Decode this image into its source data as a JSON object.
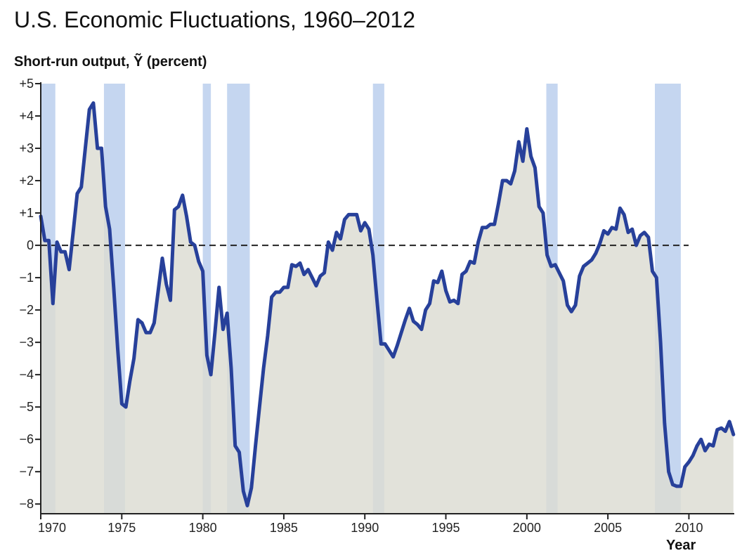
{
  "chart_data": {
    "type": "line",
    "title": "U.S. Economic Fluctuations, 1960–2012",
    "ylabel": "Short-run output, Ỹ (percent)",
    "xlabel": "Year",
    "xlim": [
      1970,
      2012.8
    ],
    "ylim": [
      -8.3,
      5
    ],
    "x_ticks": [
      1970,
      1975,
      1980,
      1985,
      1990,
      1995,
      2000,
      2005,
      2010
    ],
    "x_tick_labels": [
      "1970",
      "1975",
      "1980",
      "1985",
      "1990",
      "1995",
      "2000",
      "2005",
      "2010"
    ],
    "y_ticks": [
      5,
      4,
      3,
      2,
      1,
      0,
      -1,
      -2,
      -3,
      -4,
      -5,
      -6,
      -7,
      -8
    ],
    "y_tick_labels": [
      "+5",
      "+4",
      "+3",
      "+2",
      "+1",
      "0",
      "−1",
      "−2",
      "−3",
      "−4",
      "−5",
      "−6",
      "−7",
      "−8"
    ],
    "recessions": [
      [
        1970.0,
        1970.9
      ],
      [
        1973.9,
        1975.2
      ],
      [
        1980.0,
        1980.5
      ],
      [
        1981.5,
        1982.9
      ],
      [
        1990.5,
        1991.2
      ],
      [
        2001.2,
        2001.9
      ],
      [
        2007.9,
        2009.5
      ]
    ],
    "zero_line": "dashed",
    "colors": {
      "line": "#27409a",
      "fill": "#dcdcd2",
      "recession": "#c5d6f0",
      "zero_line": "#222222"
    },
    "series": [
      {
        "values": [
          [
            1970.0,
            0.9
          ],
          [
            1970.25,
            0.15
          ],
          [
            1970.5,
            0.15
          ],
          [
            1970.75,
            -1.8
          ],
          [
            1971.0,
            0.1
          ],
          [
            1971.25,
            -0.2
          ],
          [
            1971.5,
            -0.2
          ],
          [
            1971.75,
            -0.75
          ],
          [
            1972.0,
            0.4
          ],
          [
            1972.25,
            1.6
          ],
          [
            1972.5,
            1.8
          ],
          [
            1972.75,
            3.0
          ],
          [
            1973.0,
            4.2
          ],
          [
            1973.25,
            4.4
          ],
          [
            1973.5,
            3.0
          ],
          [
            1973.75,
            3.0
          ],
          [
            1974.0,
            1.2
          ],
          [
            1974.25,
            0.5
          ],
          [
            1974.5,
            -1.3
          ],
          [
            1974.75,
            -3.2
          ],
          [
            1975.0,
            -4.9
          ],
          [
            1975.25,
            -5.0
          ],
          [
            1975.5,
            -4.2
          ],
          [
            1975.75,
            -3.5
          ],
          [
            1976.0,
            -2.3
          ],
          [
            1976.25,
            -2.4
          ],
          [
            1976.5,
            -2.7
          ],
          [
            1976.75,
            -2.7
          ],
          [
            1977.0,
            -2.4
          ],
          [
            1977.25,
            -1.4
          ],
          [
            1977.5,
            -0.4
          ],
          [
            1977.75,
            -1.2
          ],
          [
            1978.0,
            -1.7
          ],
          [
            1978.25,
            1.1
          ],
          [
            1978.5,
            1.2
          ],
          [
            1978.75,
            1.55
          ],
          [
            1979.0,
            0.9
          ],
          [
            1979.25,
            0.1
          ],
          [
            1979.5,
            0.0
          ],
          [
            1979.75,
            -0.5
          ],
          [
            1980.0,
            -0.8
          ],
          [
            1980.25,
            -3.4
          ],
          [
            1980.5,
            -4.0
          ],
          [
            1980.75,
            -2.7
          ],
          [
            1981.0,
            -1.3
          ],
          [
            1981.25,
            -2.6
          ],
          [
            1981.5,
            -2.1
          ],
          [
            1981.75,
            -3.8
          ],
          [
            1982.0,
            -6.2
          ],
          [
            1982.25,
            -6.4
          ],
          [
            1982.5,
            -7.6
          ],
          [
            1982.75,
            -8.05
          ],
          [
            1983.0,
            -7.5
          ],
          [
            1983.25,
            -6.2
          ],
          [
            1983.5,
            -5.0
          ],
          [
            1983.75,
            -3.8
          ],
          [
            1984.0,
            -2.8
          ],
          [
            1984.25,
            -1.6
          ],
          [
            1984.5,
            -1.45
          ],
          [
            1984.75,
            -1.45
          ],
          [
            1985.0,
            -1.3
          ],
          [
            1985.25,
            -1.3
          ],
          [
            1985.5,
            -0.6
          ],
          [
            1985.75,
            -0.65
          ],
          [
            1986.0,
            -0.55
          ],
          [
            1986.25,
            -0.9
          ],
          [
            1986.5,
            -0.75
          ],
          [
            1986.75,
            -1.0
          ],
          [
            1987.0,
            -1.25
          ],
          [
            1987.25,
            -0.95
          ],
          [
            1987.5,
            -0.85
          ],
          [
            1987.75,
            0.1
          ],
          [
            1988.0,
            -0.15
          ],
          [
            1988.25,
            0.4
          ],
          [
            1988.5,
            0.2
          ],
          [
            1988.75,
            0.8
          ],
          [
            1989.0,
            0.95
          ],
          [
            1989.25,
            0.95
          ],
          [
            1989.5,
            0.95
          ],
          [
            1989.75,
            0.45
          ],
          [
            1990.0,
            0.7
          ],
          [
            1990.25,
            0.5
          ],
          [
            1990.5,
            -0.3
          ],
          [
            1990.75,
            -1.7
          ],
          [
            1991.0,
            -3.05
          ],
          [
            1991.25,
            -3.05
          ],
          [
            1991.5,
            -3.25
          ],
          [
            1991.75,
            -3.45
          ],
          [
            1992.0,
            -3.1
          ],
          [
            1992.25,
            -2.7
          ],
          [
            1992.5,
            -2.3
          ],
          [
            1992.75,
            -1.95
          ],
          [
            1993.0,
            -2.35
          ],
          [
            1993.25,
            -2.45
          ],
          [
            1993.5,
            -2.6
          ],
          [
            1993.75,
            -2.0
          ],
          [
            1994.0,
            -1.8
          ],
          [
            1994.25,
            -1.1
          ],
          [
            1994.5,
            -1.15
          ],
          [
            1994.75,
            -0.8
          ],
          [
            1995.0,
            -1.4
          ],
          [
            1995.25,
            -1.75
          ],
          [
            1995.5,
            -1.7
          ],
          [
            1995.75,
            -1.8
          ],
          [
            1996.0,
            -0.9
          ],
          [
            1996.25,
            -0.8
          ],
          [
            1996.5,
            -0.5
          ],
          [
            1996.75,
            -0.55
          ],
          [
            1997.0,
            0.1
          ],
          [
            1997.25,
            0.55
          ],
          [
            1997.5,
            0.55
          ],
          [
            1997.75,
            0.65
          ],
          [
            1998.0,
            0.65
          ],
          [
            1998.25,
            1.3
          ],
          [
            1998.5,
            2.0
          ],
          [
            1998.75,
            2.0
          ],
          [
            1999.0,
            1.9
          ],
          [
            1999.25,
            2.3
          ],
          [
            1999.5,
            3.2
          ],
          [
            1999.75,
            2.6
          ],
          [
            2000.0,
            3.6
          ],
          [
            2000.25,
            2.75
          ],
          [
            2000.5,
            2.4
          ],
          [
            2000.75,
            1.2
          ],
          [
            2001.0,
            1.0
          ],
          [
            2001.25,
            -0.3
          ],
          [
            2001.5,
            -0.65
          ],
          [
            2001.75,
            -0.6
          ],
          [
            2002.0,
            -0.85
          ],
          [
            2002.25,
            -1.1
          ],
          [
            2002.5,
            -1.85
          ],
          [
            2002.75,
            -2.05
          ],
          [
            2003.0,
            -1.85
          ],
          [
            2003.25,
            -0.95
          ],
          [
            2003.5,
            -0.65
          ],
          [
            2003.75,
            -0.55
          ],
          [
            2004.0,
            -0.45
          ],
          [
            2004.25,
            -0.25
          ],
          [
            2004.5,
            0.05
          ],
          [
            2004.75,
            0.45
          ],
          [
            2005.0,
            0.35
          ],
          [
            2005.25,
            0.55
          ],
          [
            2005.5,
            0.5
          ],
          [
            2005.75,
            1.15
          ],
          [
            2006.0,
            0.95
          ],
          [
            2006.25,
            0.4
          ],
          [
            2006.5,
            0.5
          ],
          [
            2006.75,
            0.0
          ],
          [
            2007.0,
            0.3
          ],
          [
            2007.25,
            0.4
          ],
          [
            2007.5,
            0.25
          ],
          [
            2007.75,
            -0.8
          ],
          [
            2008.0,
            -1.0
          ],
          [
            2008.25,
            -3.0
          ],
          [
            2008.5,
            -5.5
          ],
          [
            2008.75,
            -7.0
          ],
          [
            2009.0,
            -7.4
          ],
          [
            2009.25,
            -7.45
          ],
          [
            2009.5,
            -7.45
          ],
          [
            2009.75,
            -6.85
          ],
          [
            2010.0,
            -6.7
          ],
          [
            2010.25,
            -6.5
          ],
          [
            2010.5,
            -6.2
          ],
          [
            2010.75,
            -6.0
          ],
          [
            2011.0,
            -6.35
          ],
          [
            2011.25,
            -6.15
          ],
          [
            2011.5,
            -6.2
          ],
          [
            2011.75,
            -5.7
          ],
          [
            2012.0,
            -5.65
          ],
          [
            2012.25,
            -5.75
          ],
          [
            2012.5,
            -5.45
          ],
          [
            2012.75,
            -5.85
          ]
        ]
      }
    ]
  }
}
